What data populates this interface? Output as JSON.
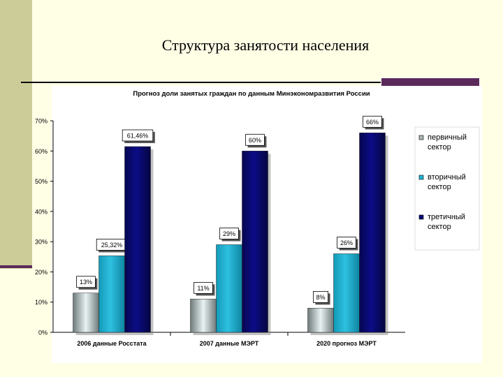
{
  "slide": {
    "title": "Структура занятости населения"
  },
  "chart_data": {
    "type": "bar",
    "title": "Прогноз доли занятых граждан по данным Минэкономразвития России",
    "categories": [
      "2006 данные Росстата",
      "2007 данные МЭРТ",
      "2020 прогноз МЭРТ"
    ],
    "series": [
      {
        "name": "первичный сектор",
        "values": [
          13,
          11,
          8
        ],
        "labels": [
          "13%",
          "11%",
          "8%"
        ],
        "color": "#a9b4b4"
      },
      {
        "name": "вторичный сектор",
        "values": [
          25.32,
          29,
          26
        ],
        "labels": [
          "25,32%",
          "29%",
          "26%"
        ],
        "color": "#1fb3d4"
      },
      {
        "name": "третичный сектор",
        "values": [
          61.46,
          60,
          66
        ],
        "labels": [
          "61,46%",
          "60%",
          "66%"
        ],
        "color": "#0a0a78"
      }
    ],
    "ylim": [
      0,
      70
    ],
    "yticks": [
      "0%",
      "10%",
      "20%",
      "30%",
      "40%",
      "50%",
      "60%",
      "70%"
    ],
    "legend_position": "right",
    "grid": false
  }
}
